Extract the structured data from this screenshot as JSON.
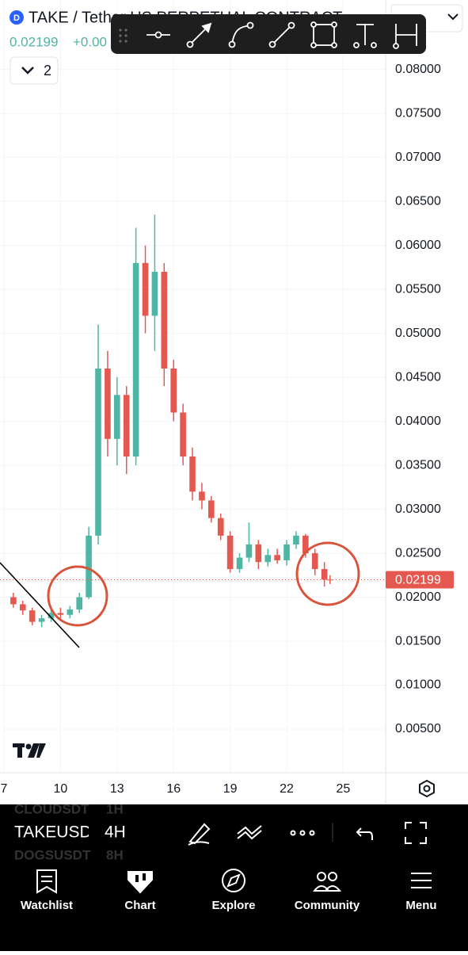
{
  "header": {
    "symbol_title": "TAKE / Tether US PERPETUAL CONTRACT",
    "price": "0.02199",
    "change": "+0.00",
    "indicators": "2"
  },
  "chart_data": {
    "type": "candlestick",
    "x": [
      7.5,
      8,
      8.5,
      9,
      9.5,
      10,
      10.5,
      11,
      11.5,
      12,
      12.5,
      13,
      13.5,
      14,
      14.5,
      15,
      15.5,
      16,
      16.5,
      17,
      17.5,
      18,
      18.5,
      19,
      19.5,
      20,
      20.5,
      21,
      21.5,
      22,
      22.5,
      23,
      23.5,
      24,
      24.3
    ],
    "open": [
      0.02,
      0.0192,
      0.0185,
      0.0172,
      0.0176,
      0.0182,
      0.018,
      0.0186,
      0.02,
      0.027,
      0.046,
      0.038,
      0.043,
      0.036,
      0.058,
      0.052,
      0.057,
      0.046,
      0.041,
      0.036,
      0.032,
      0.031,
      0.029,
      0.027,
      0.0232,
      0.0245,
      0.026,
      0.024,
      0.0248,
      0.0242,
      0.026,
      0.027,
      0.025,
      0.0232,
      0.022
    ],
    "high": [
      0.0205,
      0.0196,
      0.0188,
      0.018,
      0.0186,
      0.0188,
      0.019,
      0.0205,
      0.028,
      0.051,
      0.048,
      0.045,
      0.044,
      0.062,
      0.06,
      0.0635,
      0.058,
      0.047,
      0.042,
      0.037,
      0.033,
      0.0315,
      0.0295,
      0.0275,
      0.025,
      0.0285,
      0.0265,
      0.0255,
      0.0255,
      0.0265,
      0.0275,
      0.0272,
      0.0255,
      0.024,
      0.0225
    ],
    "low": [
      0.0188,
      0.018,
      0.0168,
      0.0166,
      0.0172,
      0.0176,
      0.0176,
      0.0182,
      0.0198,
      0.026,
      0.036,
      0.035,
      0.034,
      0.035,
      0.05,
      0.048,
      0.044,
      0.04,
      0.035,
      0.031,
      0.03,
      0.0285,
      0.0265,
      0.0228,
      0.0228,
      0.024,
      0.0232,
      0.0235,
      0.0238,
      0.0236,
      0.0255,
      0.0245,
      0.0225,
      0.0212,
      0.0215
    ],
    "close": [
      0.0192,
      0.0185,
      0.0172,
      0.0176,
      0.0182,
      0.018,
      0.0186,
      0.02,
      0.027,
      0.046,
      0.038,
      0.043,
      0.036,
      0.058,
      0.052,
      0.057,
      0.046,
      0.041,
      0.036,
      0.032,
      0.031,
      0.029,
      0.027,
      0.0232,
      0.0245,
      0.026,
      0.024,
      0.0248,
      0.0242,
      0.026,
      0.027,
      0.025,
      0.0232,
      0.022,
      0.02199
    ],
    "up_color": "#4db6a4",
    "down_color": "#e5584f",
    "last_price": 0.02199,
    "last_price_color": "#e5584f",
    "xlim": [
      6.79,
      27.25
    ],
    "xticks": [
      7,
      10,
      13,
      16,
      19,
      22,
      25
    ],
    "ylim": [
      0,
      0.0879
    ],
    "yticks": [
      {
        "value": 0.005,
        "label": "0.00500"
      },
      {
        "value": 0.01,
        "label": "0.01000"
      },
      {
        "value": 0.015,
        "label": "0.01500"
      },
      {
        "value": 0.02,
        "label": "0.02000"
      },
      {
        "value": 0.025,
        "label": "0.02500"
      },
      {
        "value": 0.03,
        "label": "0.03000"
      },
      {
        "value": 0.035,
        "label": "0.03500"
      },
      {
        "value": 0.04,
        "label": "0.04000"
      },
      {
        "value": 0.045,
        "label": "0.04500"
      },
      {
        "value": 0.05,
        "label": "0.05000"
      },
      {
        "value": 0.055,
        "label": "0.05500"
      },
      {
        "value": 0.06,
        "label": "0.06000"
      },
      {
        "value": 0.065,
        "label": "0.06500"
      },
      {
        "value": 0.07,
        "label": "0.07000"
      },
      {
        "value": 0.075,
        "label": "0.07500"
      },
      {
        "value": 0.08,
        "label": "0.08000"
      }
    ],
    "grid": true
  },
  "bottom_bar": {
    "symbol": "TAKEUSDT",
    "interval": "4H",
    "ghost_symbol_1": "CLOUDSDT",
    "ghost_interval_1": "1H",
    "ghost_symbol_2": "DOGSUSDT",
    "ghost_interval_2": "8H"
  },
  "nav": [
    "Watchlist",
    "Chart",
    "Explore",
    "Community",
    "Menu"
  ]
}
